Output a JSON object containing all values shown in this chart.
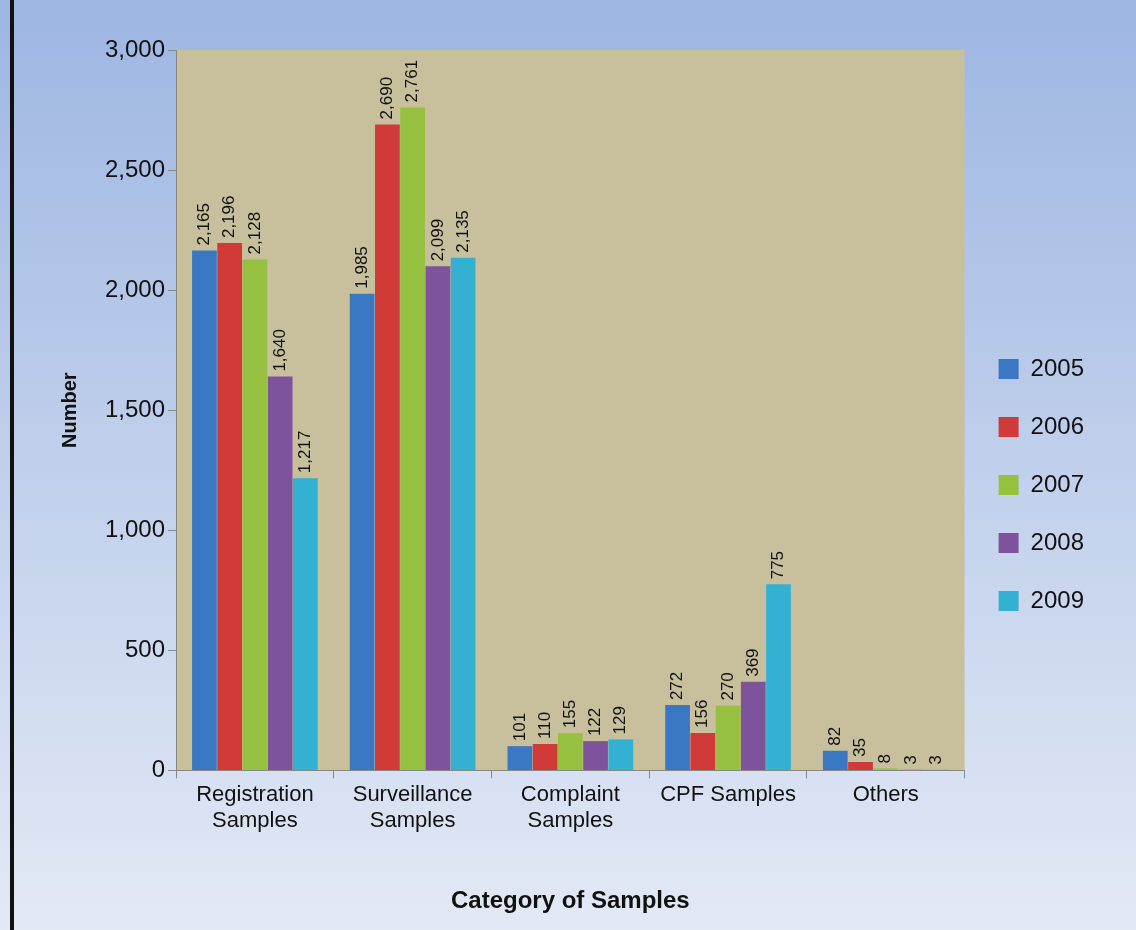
{
  "chart_data": {
    "type": "bar",
    "xlabel": "Category of Samples",
    "ylabel": "Number",
    "categories": [
      "Registration Samples",
      "Surveillance Samples",
      "Complaint Samples",
      "CPF Samples",
      "Others"
    ],
    "series": [
      {
        "name": "2005",
        "color": "#3a78c4",
        "values": [
          2165,
          1985,
          101,
          272,
          82
        ],
        "value_labels": [
          "2,165",
          "1,985",
          "101",
          "272",
          "82"
        ]
      },
      {
        "name": "2006",
        "color": "#d03a38",
        "values": [
          2196,
          2690,
          110,
          156,
          35
        ],
        "value_labels": [
          "2,196",
          "2,690",
          "110",
          "156",
          "35"
        ]
      },
      {
        "name": "2007",
        "color": "#96c040",
        "values": [
          2128,
          2761,
          155,
          270,
          8
        ],
        "value_labels": [
          "2,128",
          "2,761",
          "155",
          "270",
          "8"
        ]
      },
      {
        "name": "2008",
        "color": "#7d539e",
        "values": [
          1640,
          2099,
          122,
          369,
          3
        ],
        "value_labels": [
          "1,640",
          "2,099",
          "122",
          "369",
          "3"
        ]
      },
      {
        "name": "2009",
        "color": "#34b0d2",
        "values": [
          1217,
          2135,
          129,
          775,
          3
        ],
        "value_labels": [
          "1,217",
          "2,135",
          "129",
          "775",
          "3"
        ]
      }
    ],
    "ylim": [
      0,
      3000
    ],
    "yticks": [
      {
        "value": 0,
        "label": "0"
      },
      {
        "value": 500,
        "label": "500"
      },
      {
        "value": 1000,
        "label": "1,000"
      },
      {
        "value": 1500,
        "label": "1,500"
      },
      {
        "value": 2000,
        "label": "2,000"
      },
      {
        "value": 2500,
        "label": "2,500"
      },
      {
        "value": 3000,
        "label": "3,000"
      }
    ],
    "legend": "right"
  }
}
